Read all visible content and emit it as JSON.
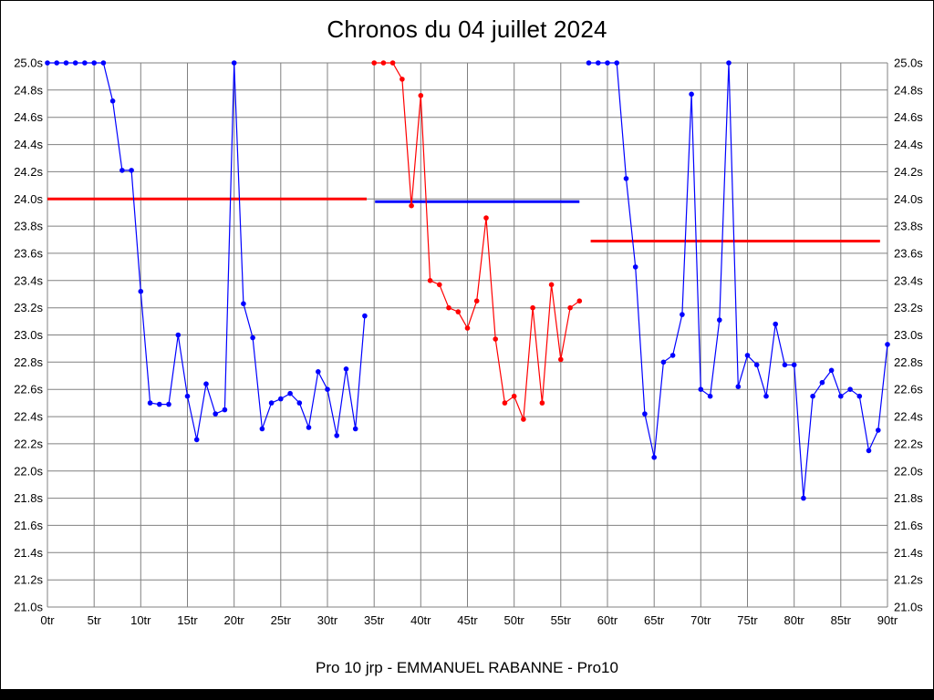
{
  "chart_data": {
    "type": "line",
    "title": "Chronos du 04 juillet 2024",
    "footer": "Pro 10 jrp - EMMANUEL RABANNE - Pro10",
    "xlim": [
      0,
      90
    ],
    "ylim": [
      21.0,
      25.0
    ],
    "grid": true,
    "legend": "none",
    "colors": {
      "blue": "#0000ff",
      "red": "#ff0000",
      "grid": "#808080",
      "text": "#000000",
      "background": "#ffffff"
    },
    "y_ticks": [
      {
        "value": 25.0,
        "label": "25.0s"
      },
      {
        "value": 24.8,
        "label": "24.8s"
      },
      {
        "value": 24.6,
        "label": "24.6s"
      },
      {
        "value": 24.4,
        "label": "24.4s"
      },
      {
        "value": 24.2,
        "label": "24.2s"
      },
      {
        "value": 24.0,
        "label": "24.0s"
      },
      {
        "value": 23.8,
        "label": "23.8s"
      },
      {
        "value": 23.6,
        "label": "23.6s"
      },
      {
        "value": 23.4,
        "label": "23.4s"
      },
      {
        "value": 23.2,
        "label": "23.2s"
      },
      {
        "value": 23.0,
        "label": "23.0s"
      },
      {
        "value": 22.8,
        "label": "22.8s"
      },
      {
        "value": 22.6,
        "label": "22.6s"
      },
      {
        "value": 22.4,
        "label": "22.4s"
      },
      {
        "value": 22.2,
        "label": "22.2s"
      },
      {
        "value": 22.0,
        "label": "22.0s"
      },
      {
        "value": 21.8,
        "label": "21.8s"
      },
      {
        "value": 21.6,
        "label": "21.6s"
      },
      {
        "value": 21.4,
        "label": "21.4s"
      },
      {
        "value": 21.2,
        "label": "21.2s"
      },
      {
        "value": 21.0,
        "label": "21.0s"
      }
    ],
    "x_ticks": [
      {
        "value": 0,
        "label": "0tr"
      },
      {
        "value": 5,
        "label": "5tr"
      },
      {
        "value": 10,
        "label": "10tr"
      },
      {
        "value": 15,
        "label": "15tr"
      },
      {
        "value": 20,
        "label": "20tr"
      },
      {
        "value": 25,
        "label": "25tr"
      },
      {
        "value": 30,
        "label": "30tr"
      },
      {
        "value": 35,
        "label": "35tr"
      },
      {
        "value": 40,
        "label": "40tr"
      },
      {
        "value": 45,
        "label": "45tr"
      },
      {
        "value": 50,
        "label": "50tr"
      },
      {
        "value": 55,
        "label": "55tr"
      },
      {
        "value": 60,
        "label": "60tr"
      },
      {
        "value": 65,
        "label": "65tr"
      },
      {
        "value": 70,
        "label": "70tr"
      },
      {
        "value": 75,
        "label": "75tr"
      },
      {
        "value": 80,
        "label": "80tr"
      },
      {
        "value": 85,
        "label": "85tr"
      },
      {
        "value": 90,
        "label": "90tr"
      }
    ],
    "reference_lines": [
      {
        "name": "average-line-stint-1",
        "color": "#ff0000",
        "y": 24.0,
        "x1": 0.0,
        "x2": 34.2
      },
      {
        "name": "average-line-stint-2",
        "color": "#0000ff",
        "y": 23.98,
        "x1": 35.1,
        "x2": 57.0
      },
      {
        "name": "average-line-stint-3",
        "color": "#ff0000",
        "y": 23.69,
        "x1": 58.2,
        "x2": 89.2
      }
    ],
    "series": [
      {
        "name": "stint-1-blue",
        "color": "#0000ff",
        "points": [
          [
            0,
            25.0
          ],
          [
            1,
            25.0
          ],
          [
            2,
            25.0
          ],
          [
            3,
            25.0
          ],
          [
            4,
            25.0
          ],
          [
            5,
            25.0
          ],
          [
            6,
            25.0
          ],
          [
            7,
            24.72
          ],
          [
            8,
            24.21
          ],
          [
            9,
            24.21
          ],
          [
            10,
            23.32
          ],
          [
            11,
            22.5
          ],
          [
            12,
            22.49
          ],
          [
            13,
            22.49
          ],
          [
            14,
            23.0
          ],
          [
            15,
            22.55
          ],
          [
            16,
            22.23
          ],
          [
            17,
            22.64
          ],
          [
            18,
            22.42
          ],
          [
            19,
            22.45
          ],
          [
            20,
            25.0
          ],
          [
            21,
            23.23
          ],
          [
            22,
            22.98
          ],
          [
            23,
            22.31
          ],
          [
            24,
            22.5
          ],
          [
            25,
            22.53
          ],
          [
            26,
            22.57
          ],
          [
            27,
            22.5
          ],
          [
            28,
            22.32
          ],
          [
            29,
            22.73
          ],
          [
            30,
            22.6
          ],
          [
            31,
            22.26
          ],
          [
            32,
            22.75
          ],
          [
            33,
            22.31
          ],
          [
            34,
            23.14
          ]
        ]
      },
      {
        "name": "stint-2-red",
        "color": "#ff0000",
        "points": [
          [
            35,
            25.0
          ],
          [
            36,
            25.0
          ],
          [
            37,
            25.0
          ],
          [
            38,
            24.88
          ],
          [
            39,
            23.95
          ],
          [
            40,
            24.76
          ],
          [
            41,
            23.4
          ],
          [
            42,
            23.37
          ],
          [
            43,
            23.2
          ],
          [
            44,
            23.17
          ],
          [
            45,
            23.05
          ],
          [
            46,
            23.25
          ],
          [
            47,
            23.86
          ],
          [
            48,
            22.97
          ],
          [
            49,
            22.5
          ],
          [
            50,
            22.55
          ],
          [
            51,
            22.38
          ],
          [
            52,
            23.2
          ],
          [
            53,
            22.5
          ],
          [
            54,
            23.37
          ],
          [
            55,
            22.82
          ],
          [
            56,
            23.2
          ],
          [
            57,
            23.25
          ]
        ]
      },
      {
        "name": "stint-3-blue",
        "color": "#0000ff",
        "points": [
          [
            58,
            25.0
          ],
          [
            59,
            25.0
          ],
          [
            60,
            25.0
          ],
          [
            61,
            25.0
          ],
          [
            62,
            24.15
          ],
          [
            63,
            23.5
          ],
          [
            64,
            22.42
          ],
          [
            65,
            22.1
          ],
          [
            66,
            22.8
          ],
          [
            67,
            22.85
          ],
          [
            68,
            23.15
          ],
          [
            69,
            24.77
          ],
          [
            70,
            22.6
          ],
          [
            71,
            22.55
          ],
          [
            72,
            23.11
          ],
          [
            73,
            25.0
          ],
          [
            74,
            22.62
          ],
          [
            75,
            22.85
          ],
          [
            76,
            22.78
          ],
          [
            77,
            22.55
          ],
          [
            78,
            23.08
          ],
          [
            79,
            22.78
          ],
          [
            80,
            22.78
          ],
          [
            81,
            21.8
          ],
          [
            82,
            22.55
          ],
          [
            83,
            22.65
          ],
          [
            84,
            22.74
          ],
          [
            85,
            22.55
          ],
          [
            86,
            22.6
          ],
          [
            87,
            22.55
          ],
          [
            88,
            22.15
          ],
          [
            89,
            22.3
          ],
          [
            90,
            22.93
          ]
        ]
      }
    ]
  }
}
